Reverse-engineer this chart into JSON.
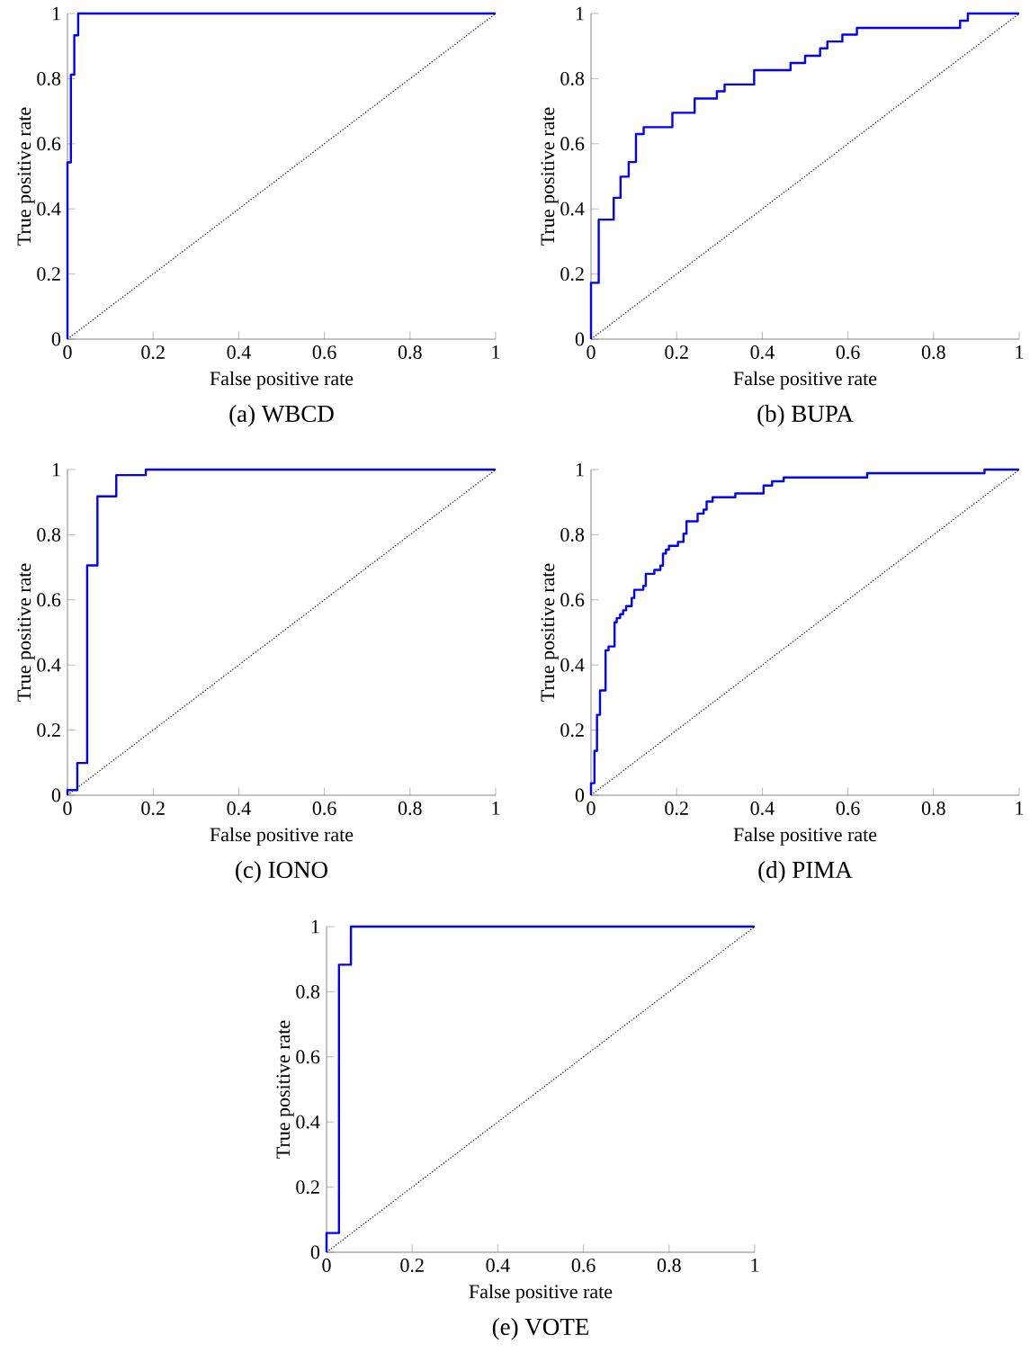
{
  "chart_data": [
    {
      "type": "line",
      "title": "(a) WBCD",
      "xlabel": "False positive rate",
      "ylabel": "True positive rate",
      "xlim": [
        0,
        1
      ],
      "ylim": [
        0,
        1
      ],
      "xticks": [
        0,
        0.2,
        0.4,
        0.6,
        0.8,
        1
      ],
      "yticks": [
        0,
        0.2,
        0.4,
        0.6,
        0.8,
        1
      ],
      "series": [
        {
          "color": "#0000ff",
          "line_style": "solid",
          "x": [
            0,
            0,
            0.008,
            0.008,
            0.016,
            0.016,
            0.025,
            0.025,
            1
          ],
          "values": [
            0,
            0.543,
            0.543,
            0.812,
            0.812,
            0.933,
            0.933,
            1,
            1
          ]
        },
        {
          "color": "#000000",
          "line_style": "dotted",
          "x": [
            0,
            1
          ],
          "values": [
            0,
            1
          ]
        }
      ]
    },
    {
      "type": "line",
      "title": "(b) BUPA",
      "xlabel": "False positive rate",
      "ylabel": "True positive rate",
      "xlim": [
        0,
        1
      ],
      "ylim": [
        0,
        1
      ],
      "xticks": [
        0,
        0.2,
        0.4,
        0.6,
        0.8,
        1
      ],
      "yticks": [
        0,
        0.2,
        0.4,
        0.6,
        0.8,
        1
      ],
      "series": [
        {
          "color": "#0000ff",
          "line_style": "solid",
          "x": [
            0,
            0,
            0.018,
            0.018,
            0.053,
            0.053,
            0.069,
            0.069,
            0.088,
            0.088,
            0.105,
            0.105,
            0.123,
            0.123,
            0.19,
            0.19,
            0.242,
            0.242,
            0.294,
            0.294,
            0.312,
            0.312,
            0.381,
            0.381,
            0.466,
            0.466,
            0.5,
            0.5,
            0.535,
            0.535,
            0.552,
            0.552,
            0.587,
            0.587,
            0.621,
            0.621,
            0.862,
            0.862,
            0.88,
            0.88,
            1
          ],
          "values": [
            0,
            0.173,
            0.173,
            0.367,
            0.367,
            0.434,
            0.434,
            0.499,
            0.499,
            0.544,
            0.544,
            0.63,
            0.63,
            0.651,
            0.651,
            0.695,
            0.695,
            0.739,
            0.739,
            0.761,
            0.761,
            0.782,
            0.782,
            0.826,
            0.826,
            0.848,
            0.848,
            0.87,
            0.87,
            0.893,
            0.893,
            0.914,
            0.914,
            0.935,
            0.935,
            0.956,
            0.956,
            0.978,
            0.978,
            1,
            1
          ]
        },
        {
          "color": "#000000",
          "line_style": "dotted",
          "x": [
            0,
            1
          ],
          "values": [
            0,
            1
          ]
        }
      ]
    },
    {
      "type": "line",
      "title": "(c) IONO",
      "xlabel": "False positive rate",
      "ylabel": "True positive rate",
      "xlim": [
        0,
        1
      ],
      "ylim": [
        0,
        1
      ],
      "xticks": [
        0,
        0.2,
        0.4,
        0.6,
        0.8,
        1
      ],
      "yticks": [
        0,
        0.2,
        0.4,
        0.6,
        0.8,
        1
      ],
      "series": [
        {
          "color": "#0000ff",
          "line_style": "solid",
          "x": [
            0,
            0,
            0.023,
            0.023,
            0.046,
            0.046,
            0.07,
            0.07,
            0.114,
            0.114,
            0.183,
            0.183,
            1
          ],
          "values": [
            0,
            0.016,
            0.016,
            0.099,
            0.099,
            0.706,
            0.706,
            0.918,
            0.918,
            0.983,
            0.983,
            1,
            1
          ]
        },
        {
          "color": "#000000",
          "line_style": "dotted",
          "x": [
            0,
            1
          ],
          "values": [
            0,
            1
          ]
        }
      ]
    },
    {
      "type": "line",
      "title": "(d) PIMA",
      "xlabel": "False positive rate",
      "ylabel": "True positive rate",
      "xlim": [
        0,
        1
      ],
      "ylim": [
        0,
        1
      ],
      "xticks": [
        0,
        0.2,
        0.4,
        0.6,
        0.8,
        1
      ],
      "yticks": [
        0,
        0.2,
        0.4,
        0.6,
        0.8,
        1
      ],
      "series": [
        {
          "color": "#0000ff",
          "line_style": "solid",
          "x": [
            0,
            0,
            0.008,
            0.008,
            0.014,
            0.014,
            0.021,
            0.021,
            0.034,
            0.034,
            0.041,
            0.041,
            0.055,
            0.055,
            0.06,
            0.06,
            0.068,
            0.068,
            0.075,
            0.075,
            0.082,
            0.082,
            0.095,
            0.095,
            0.101,
            0.101,
            0.122,
            0.122,
            0.128,
            0.128,
            0.148,
            0.148,
            0.162,
            0.162,
            0.168,
            0.168,
            0.175,
            0.175,
            0.182,
            0.182,
            0.203,
            0.203,
            0.216,
            0.216,
            0.223,
            0.223,
            0.249,
            0.249,
            0.263,
            0.263,
            0.27,
            0.27,
            0.284,
            0.284,
            0.337,
            0.337,
            0.403,
            0.403,
            0.423,
            0.423,
            0.45,
            0.45,
            0.645,
            0.645,
            0.919,
            0.919,
            1
          ],
          "values": [
            0,
            0.037,
            0.037,
            0.136,
            0.136,
            0.247,
            0.247,
            0.322,
            0.322,
            0.445,
            0.445,
            0.457,
            0.457,
            0.531,
            0.531,
            0.544,
            0.544,
            0.556,
            0.556,
            0.568,
            0.568,
            0.581,
            0.581,
            0.606,
            0.606,
            0.631,
            0.631,
            0.643,
            0.643,
            0.68,
            0.68,
            0.692,
            0.692,
            0.705,
            0.705,
            0.742,
            0.742,
            0.754,
            0.754,
            0.766,
            0.766,
            0.778,
            0.778,
            0.803,
            0.803,
            0.841,
            0.841,
            0.865,
            0.865,
            0.877,
            0.877,
            0.902,
            0.902,
            0.915,
            0.915,
            0.927,
            0.927,
            0.951,
            0.951,
            0.964,
            0.964,
            0.976,
            0.976,
            0.989,
            0.989,
            1,
            1
          ]
        },
        {
          "color": "#000000",
          "line_style": "dotted",
          "x": [
            0,
            1
          ],
          "values": [
            0,
            1
          ]
        }
      ]
    },
    {
      "type": "line",
      "title": "(e) VOTE",
      "xlabel": "False positive rate",
      "ylabel": "True positive rate",
      "xlim": [
        0,
        1
      ],
      "ylim": [
        0,
        1
      ],
      "xticks": [
        0,
        0.2,
        0.4,
        0.6,
        0.8,
        1
      ],
      "yticks": [
        0,
        0.2,
        0.4,
        0.6,
        0.8,
        1
      ],
      "series": [
        {
          "color": "#0000ff",
          "line_style": "solid",
          "x": [
            0,
            0,
            0.029,
            0.029,
            0.057,
            0.057,
            1
          ],
          "values": [
            0,
            0.059,
            0.059,
            0.883,
            0.883,
            1,
            1
          ]
        },
        {
          "color": "#000000",
          "line_style": "dotted",
          "x": [
            0,
            1
          ],
          "values": [
            0,
            1
          ]
        }
      ]
    }
  ]
}
